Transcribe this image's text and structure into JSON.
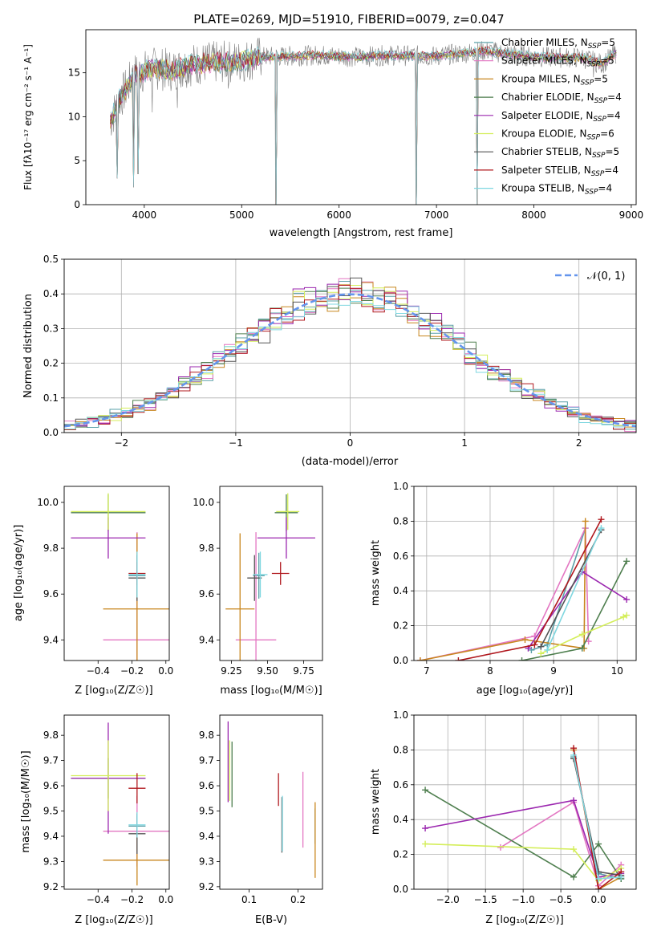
{
  "title": "PLATE=0269, MJD=51910, FIBERID=0079, z=0.047",
  "colors": {
    "Chabrier MILES": "#5aa0a8",
    "Salpeter MILES": "#e377c2",
    "Kroupa MILES": "#c8861e",
    "Chabrier ELODIE": "#4f7f4f",
    "Salpeter ELODIE": "#9b27af",
    "Kroupa ELODIE": "#d4ee5a",
    "Chabrier STELIB": "#555555",
    "Salpeter STELIB": "#b0181e",
    "Kroupa STELIB": "#7fd7e0",
    "data": "#808080",
    "normal": "#6495ed",
    "grid": "#b0b0b0"
  },
  "chart_data": [
    {
      "id": "spectrum",
      "type": "line",
      "xlabel": "wavelength [Angstrom, rest frame]",
      "ylabel": "Flux [fλ10⁻¹⁷ erg cm⁻² s⁻¹ A⁻¹]",
      "xlim": [
        3400,
        9050
      ],
      "ylim": [
        0,
        19.9
      ],
      "xticks": [
        4000,
        5000,
        6000,
        7000,
        8000,
        9000
      ],
      "yticks": [
        0,
        5,
        10,
        15
      ],
      "grid": false,
      "legend_position": "top-right",
      "legend": [
        {
          "text": "Chabrier MILES, N",
          "sub": "SSP",
          "tail": "=5"
        },
        {
          "text": "Salpeter MILES, N",
          "sub": "SSP",
          "tail": "=5"
        },
        {
          "text": "Kroupa MILES, N",
          "sub": "SSP",
          "tail": "=5"
        },
        {
          "text": "Chabrier ELODIE, N",
          "sub": "SSP",
          "tail": "=4"
        },
        {
          "text": "Salpeter ELODIE, N",
          "sub": "SSP",
          "tail": "=4"
        },
        {
          "text": "Kroupa ELODIE, N",
          "sub": "SSP",
          "tail": "=6"
        },
        {
          "text": "Chabrier STELIB, N",
          "sub": "SSP",
          "tail": "=5"
        },
        {
          "text": "Salpeter STELIB, N",
          "sub": "SSP",
          "tail": "=4"
        },
        {
          "text": "Kroupa STELIB, N",
          "sub": "SSP",
          "tail": "=4"
        }
      ],
      "continuum": [
        [
          3650,
          9.5
        ],
        [
          3750,
          12.0
        ],
        [
          3900,
          14.8
        ],
        [
          4100,
          15.5
        ],
        [
          4300,
          15.3
        ],
        [
          4500,
          16.0
        ],
        [
          4800,
          16.2
        ],
        [
          5000,
          16.3
        ],
        [
          5200,
          16.8
        ],
        [
          5500,
          16.9
        ],
        [
          5800,
          17.0
        ],
        [
          6200,
          16.8
        ],
        [
          6500,
          17.0
        ],
        [
          7000,
          16.9
        ],
        [
          7500,
          17.5
        ],
        [
          8000,
          16.8
        ],
        [
          8500,
          16.7
        ],
        [
          8700,
          16.0
        ],
        [
          8850,
          17.3
        ]
      ],
      "spikes": [
        [
          3720,
          3.0
        ],
        [
          3890,
          2.0
        ],
        [
          3935,
          3.5
        ],
        [
          4080,
          10.5
        ],
        [
          4340,
          11.0
        ],
        [
          4860,
          13.2
        ],
        [
          5350,
          0.0
        ],
        [
          6790,
          0.0
        ],
        [
          7420,
          0.0
        ],
        [
          8610,
          14.5
        ]
      ]
    },
    {
      "id": "residuals",
      "type": "histogram",
      "xlabel": "(data-model)/error",
      "ylabel": "Normed distribution",
      "xlim": [
        -2.5,
        2.5
      ],
      "ylim": [
        0,
        0.5
      ],
      "xticks": [
        -2,
        -1,
        0,
        1,
        2
      ],
      "yticks": [
        0.0,
        0.1,
        0.2,
        0.3,
        0.4,
        0.5
      ],
      "grid": true,
      "bin_width": 0.1,
      "legend": "𝒩(0, 1)",
      "legend_position": "top-right",
      "normal": {
        "mu": 0,
        "sigma": 1
      }
    },
    {
      "id": "age_vs_Z",
      "type": "errorbar",
      "xlabel": "Z [log₁₀(Z/Z☉)]",
      "ylabel": "age  [log₁₀(age/yr)]",
      "xlim": [
        -0.6,
        0.02
      ],
      "ylim": [
        9.31,
        10.07
      ],
      "xticks": [
        -0.4,
        -0.2,
        0.0
      ],
      "yticks": [
        9.4,
        9.6,
        9.8,
        10.0
      ],
      "points": [
        {
          "model": "Chabrier MILES",
          "x": -0.17,
          "xerr": 0.05,
          "y": 9.68,
          "yerr": 0.1
        },
        {
          "model": "Salpeter MILES",
          "x": -0.17,
          "xerr": 0.2,
          "y": 9.4,
          "yerr": 0.47
        },
        {
          "model": "Kroupa MILES",
          "x": -0.17,
          "xerr": 0.2,
          "y": 9.535,
          "yerr": 0.33
        },
        {
          "model": "Chabrier ELODIE",
          "x": -0.34,
          "xerr": 0.22,
          "y": 9.955,
          "yerr": 0.08
        },
        {
          "model": "Salpeter ELODIE",
          "x": -0.34,
          "xerr": 0.22,
          "y": 9.845,
          "yerr": 0.09
        },
        {
          "model": "Kroupa ELODIE",
          "x": -0.34,
          "xerr": 0.22,
          "y": 9.96,
          "yerr": 0.08
        },
        {
          "model": "Chabrier STELIB",
          "x": -0.17,
          "xerr": 0.05,
          "y": 9.67,
          "yerr": 0.1
        },
        {
          "model": "Salpeter STELIB",
          "x": -0.17,
          "xerr": 0.05,
          "y": 9.69,
          "yerr": 0.05
        },
        {
          "model": "Kroupa STELIB",
          "x": -0.17,
          "xerr": 0.05,
          "y": 9.685,
          "yerr": 0.1
        }
      ]
    },
    {
      "id": "age_vs_mass",
      "type": "errorbar",
      "xlabel": "mass [log₁₀(M/M☉)]",
      "ylabel": "",
      "xlim": [
        9.17,
        9.88
      ],
      "ylim": [
        9.31,
        10.07
      ],
      "xticks": [
        9.25,
        9.5,
        9.75
      ],
      "yticks": [
        9.4,
        9.6,
        9.8,
        10.0
      ],
      "points": [
        {
          "model": "Chabrier MILES",
          "x": 9.44,
          "xerr": 0.04,
          "y": 9.68,
          "yerr": 0.1
        },
        {
          "model": "Salpeter MILES",
          "x": 9.42,
          "xerr": 0.14,
          "y": 9.4,
          "yerr": 0.47
        },
        {
          "model": "Kroupa MILES",
          "x": 9.31,
          "xerr": 0.1,
          "y": 9.535,
          "yerr": 0.33
        },
        {
          "model": "Chabrier ELODIE",
          "x": 9.63,
          "xerr": 0.08,
          "y": 9.955,
          "yerr": 0.08
        },
        {
          "model": "Salpeter ELODIE",
          "x": 9.63,
          "xerr": 0.2,
          "y": 9.845,
          "yerr": 0.09
        },
        {
          "model": "Kroupa ELODIE",
          "x": 9.64,
          "xerr": 0.08,
          "y": 9.96,
          "yerr": 0.08
        },
        {
          "model": "Chabrier STELIB",
          "x": 9.41,
          "xerr": 0.05,
          "y": 9.67,
          "yerr": 0.1
        },
        {
          "model": "Salpeter STELIB",
          "x": 9.59,
          "xerr": 0.06,
          "y": 9.69,
          "yerr": 0.05
        },
        {
          "model": "Kroupa STELIB",
          "x": 9.45,
          "xerr": 0.05,
          "y": 9.685,
          "yerr": 0.1
        }
      ]
    },
    {
      "id": "weight_vs_age",
      "type": "line",
      "xlabel": "age  [log₁₀(age/yr)]",
      "ylabel": "mass weight",
      "xlim": [
        6.8,
        10.3
      ],
      "ylim": [
        0,
        1.0
      ],
      "xticks": [
        7,
        8,
        9,
        10
      ],
      "yticks": [
        0.0,
        0.2,
        0.4,
        0.6,
        0.8,
        1.0
      ],
      "grid": true,
      "series": [
        {
          "model": "Chabrier MILES",
          "points": [
            [
              8.65,
              0.06
            ],
            [
              8.9,
              0.09
            ],
            [
              9.5,
              0.76
            ]
          ]
        },
        {
          "model": "Salpeter MILES",
          "points": [
            [
              6.9,
              0.0
            ],
            [
              8.7,
              0.14
            ],
            [
              9.5,
              0.76
            ],
            [
              9.55,
              0.11
            ]
          ]
        },
        {
          "model": "Kroupa MILES",
          "points": [
            [
              6.9,
              0.0
            ],
            [
              8.55,
              0.12
            ],
            [
              9.48,
              0.07
            ],
            [
              9.5,
              0.8
            ]
          ]
        },
        {
          "model": "Chabrier ELODIE",
          "points": [
            [
              8.5,
              0.0
            ],
            [
              9.45,
              0.07
            ],
            [
              10.15,
              0.57
            ]
          ]
        },
        {
          "model": "Salpeter ELODIE",
          "points": [
            [
              8.6,
              0.07
            ],
            [
              9.45,
              0.51
            ],
            [
              10.15,
              0.35
            ]
          ]
        },
        {
          "model": "Kroupa ELODIE",
          "points": [
            [
              8.8,
              0.04
            ],
            [
              9.45,
              0.15
            ],
            [
              10.1,
              0.25
            ],
            [
              10.15,
              0.26
            ]
          ]
        },
        {
          "model": "Chabrier STELIB",
          "points": [
            [
              8.8,
              0.08
            ],
            [
              9.75,
              0.75
            ]
          ]
        },
        {
          "model": "Salpeter STELIB",
          "points": [
            [
              7.5,
              0.0
            ],
            [
              8.7,
              0.09
            ],
            [
              9.75,
              0.81
            ]
          ]
        },
        {
          "model": "Kroupa STELIB",
          "points": [
            [
              8.9,
              0.06
            ],
            [
              9.75,
              0.76
            ]
          ]
        }
      ]
    },
    {
      "id": "mass_vs_Z",
      "type": "errorbar",
      "xlabel": "Z [log₁₀(Z/Z☉)]",
      "ylabel": "mass [log₁₀(M/M☉)]",
      "xlim": [
        -0.6,
        0.02
      ],
      "ylim": [
        9.19,
        9.88
      ],
      "xticks": [
        -0.4,
        -0.2,
        0.0
      ],
      "yticks": [
        9.2,
        9.3,
        9.4,
        9.5,
        9.6,
        9.7,
        9.8
      ],
      "points": [
        {
          "model": "Chabrier MILES",
          "x": -0.17,
          "xerr": 0.05,
          "y": 9.44,
          "yerr": 0.04
        },
        {
          "model": "Salpeter MILES",
          "x": -0.17,
          "xerr": 0.2,
          "y": 9.42,
          "yerr": 0.14
        },
        {
          "model": "Kroupa MILES",
          "x": -0.17,
          "xerr": 0.2,
          "y": 9.305,
          "yerr": 0.1
        },
        {
          "model": "Chabrier ELODIE",
          "x": -0.34,
          "xerr": 0.22,
          "y": 9.63,
          "yerr": 0.08
        },
        {
          "model": "Salpeter ELODIE",
          "x": -0.34,
          "xerr": 0.22,
          "y": 9.63,
          "yerr": 0.22
        },
        {
          "model": "Kroupa ELODIE",
          "x": -0.34,
          "xerr": 0.22,
          "y": 9.64,
          "yerr": 0.14
        },
        {
          "model": "Chabrier STELIB",
          "x": -0.17,
          "xerr": 0.05,
          "y": 9.41,
          "yerr": 0.08
        },
        {
          "model": "Salpeter STELIB",
          "x": -0.17,
          "xerr": 0.05,
          "y": 9.59,
          "yerr": 0.06
        },
        {
          "model": "Kroupa STELIB",
          "x": -0.17,
          "xerr": 0.05,
          "y": 9.445,
          "yerr": 0.05
        }
      ]
    },
    {
      "id": "mass_vs_EBV",
      "type": "errorbar",
      "xlabel": "E(B-V)",
      "ylabel": "",
      "xlim": [
        0.04,
        0.25
      ],
      "ylim": [
        9.19,
        9.88
      ],
      "xticks": [
        0.1,
        0.2
      ],
      "yticks": [
        9.2,
        9.3,
        9.4,
        9.5,
        9.6,
        9.7,
        9.8
      ],
      "points": [
        {
          "model": "Chabrier MILES",
          "x": 0.235,
          "xerr": 0,
          "y": 9.44,
          "yerr": 0.07
        },
        {
          "model": "Salpeter MILES",
          "x": 0.21,
          "xerr": 0,
          "y": 9.505,
          "yerr": 0.15
        },
        {
          "model": "Kroupa MILES",
          "x": 0.235,
          "xerr": 0,
          "y": 9.385,
          "yerr": 0.15
        },
        {
          "model": "Chabrier ELODIE",
          "x": 0.065,
          "xerr": 0,
          "y": 9.645,
          "yerr": 0.13
        },
        {
          "model": "Salpeter ELODIE",
          "x": 0.057,
          "xerr": 0,
          "y": 9.695,
          "yerr": 0.16
        },
        {
          "model": "Kroupa ELODIE",
          "x": 0.06,
          "xerr": 0,
          "y": 9.66,
          "yerr": 0.12
        },
        {
          "model": "Chabrier STELIB",
          "x": 0.167,
          "xerr": 0,
          "y": 9.445,
          "yerr": 0.11
        },
        {
          "model": "Salpeter STELIB",
          "x": 0.16,
          "xerr": 0,
          "y": 9.585,
          "yerr": 0.065
        },
        {
          "model": "Kroupa STELIB",
          "x": 0.168,
          "xerr": 0,
          "y": 9.45,
          "yerr": 0.11
        }
      ]
    },
    {
      "id": "weight_vs_Z",
      "type": "line",
      "xlabel": "Z [log₁₀(Z/Z☉)]",
      "ylabel": "mass weight",
      "xlim": [
        -2.45,
        0.5
      ],
      "ylim": [
        0,
        1.0
      ],
      "xticks": [
        -2.0,
        -1.5,
        -1.0,
        -0.5,
        0.0
      ],
      "yticks": [
        0.0,
        0.2,
        0.4,
        0.6,
        0.8,
        1.0
      ],
      "grid": true,
      "series": [
        {
          "model": "Chabrier MILES",
          "points": [
            [
              -0.33,
              0.76
            ],
            [
              0.0,
              0.09
            ],
            [
              0.3,
              0.06
            ]
          ]
        },
        {
          "model": "Salpeter MILES",
          "points": [
            [
              -1.3,
              0.24
            ],
            [
              -0.33,
              0.5
            ],
            [
              0.0,
              0.02
            ],
            [
              0.3,
              0.14
            ]
          ]
        },
        {
          "model": "Kroupa MILES",
          "points": [
            [
              -0.33,
              0.8
            ],
            [
              0.0,
              0.0
            ],
            [
              0.3,
              0.07
            ]
          ]
        },
        {
          "model": "Chabrier ELODIE",
          "points": [
            [
              -2.3,
              0.57
            ],
            [
              -0.33,
              0.07
            ],
            [
              0.0,
              0.26
            ],
            [
              0.3,
              0.06
            ]
          ]
        },
        {
          "model": "Salpeter ELODIE",
          "points": [
            [
              -2.3,
              0.35
            ],
            [
              -0.33,
              0.51
            ],
            [
              0.0,
              0.07
            ],
            [
              0.3,
              0.09
            ]
          ]
        },
        {
          "model": "Kroupa ELODIE",
          "points": [
            [
              -2.3,
              0.26
            ],
            [
              -0.33,
              0.23
            ],
            [
              0.0,
              0.05
            ],
            [
              0.3,
              0.12
            ]
          ]
        },
        {
          "model": "Chabrier STELIB",
          "points": [
            [
              -0.33,
              0.75
            ],
            [
              0.0,
              0.1
            ],
            [
              0.3,
              0.08
            ]
          ]
        },
        {
          "model": "Salpeter STELIB",
          "points": [
            [
              -0.33,
              0.81
            ],
            [
              0.0,
              0.0
            ],
            [
              0.3,
              0.1
            ]
          ]
        },
        {
          "model": "Kroupa STELIB",
          "points": [
            [
              -0.33,
              0.77
            ],
            [
              0.0,
              0.06
            ],
            [
              0.3,
              0.07
            ]
          ]
        }
      ]
    }
  ]
}
